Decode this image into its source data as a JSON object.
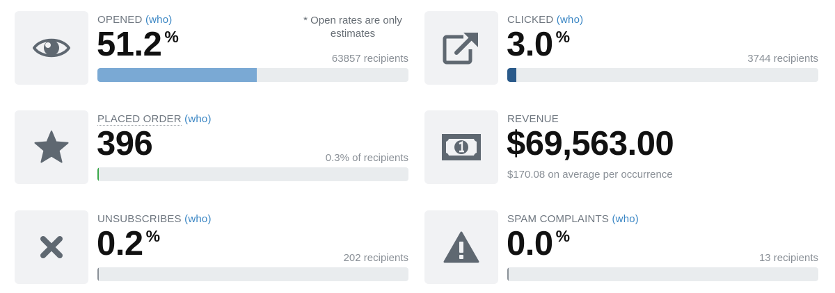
{
  "stats": {
    "opened": {
      "label": "OPENED",
      "who": "(who)",
      "value": "51.2",
      "unit": "%",
      "note": "* Open rates are only estimates",
      "sub": "63857 recipients",
      "progress": 0.512,
      "bar_color": "#7aa9d4",
      "icon": "eye-icon"
    },
    "clicked": {
      "label": "CLICKED",
      "who": "(who)",
      "value": "3.0",
      "unit": "%",
      "sub": "3744 recipients",
      "progress": 0.03,
      "bar_color": "#2a5a8a",
      "icon": "external-link-icon"
    },
    "placed_order": {
      "label": "PLACED ORDER",
      "who": "(who)",
      "value": "396",
      "sub": "0.3% of recipients",
      "progress": 0.003,
      "bar_color": "#3aa84a",
      "icon": "star-icon"
    },
    "revenue": {
      "label": "REVENUE",
      "value": "$69,563.00",
      "sub": "$170.08 on average per occurrence",
      "icon": "money-bill-icon"
    },
    "unsubscribes": {
      "label": "UNSUBSCRIBES",
      "who": "(who)",
      "value": "0.2",
      "unit": "%",
      "sub": "202 recipients",
      "progress": 0.002,
      "bar_color": "#8a9097",
      "icon": "x-icon"
    },
    "spam": {
      "label": "SPAM COMPLAINTS",
      "who": "(who)",
      "value": "0.0",
      "unit": "%",
      "sub": "13 recipients",
      "progress": 0.0,
      "bar_color": "#8a9097",
      "icon": "warning-icon"
    }
  },
  "colors": {
    "icon": "#5f6871",
    "tile_bg": "#f1f2f4",
    "track": "#e9ecee",
    "link": "#3a86c4"
  }
}
